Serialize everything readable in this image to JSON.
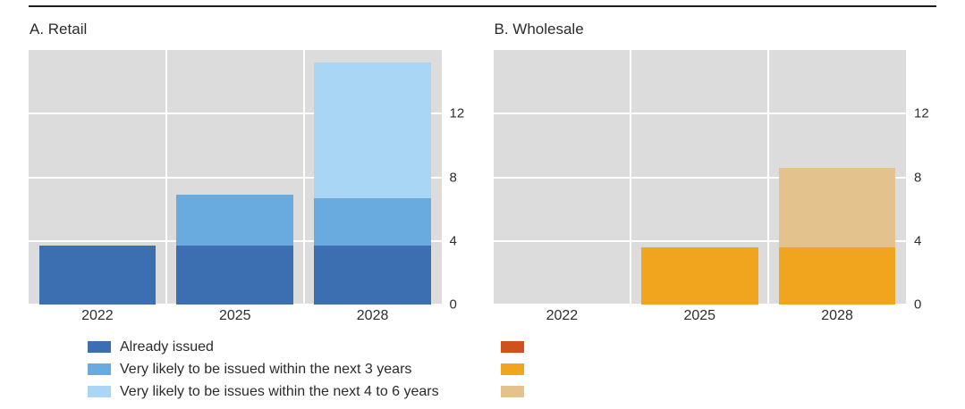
{
  "chart_data": [
    {
      "type": "bar",
      "stacked": true,
      "title": "A. Retail",
      "categories": [
        "2022",
        "2025",
        "2028"
      ],
      "yticks": [
        0,
        4,
        8,
        12
      ],
      "ylim": [
        0,
        16
      ],
      "grid": true,
      "legend_position": "below-left",
      "series": [
        {
          "name": "Already issued",
          "color": "#3c6fb2",
          "values": [
            3.7,
            3.7,
            3.7
          ]
        },
        {
          "name": "Very likely to be issued within the next 3 years",
          "color": "#69abdf",
          "values": [
            0,
            3.2,
            3.0
          ]
        },
        {
          "name": "Very likely to be issues within the next 4 to 6 years",
          "color": "#a9d6f5",
          "values": [
            0,
            0,
            8.5
          ]
        }
      ]
    },
    {
      "type": "bar",
      "stacked": true,
      "title": "B. Wholesale",
      "categories": [
        "2022",
        "2025",
        "2028"
      ],
      "yticks": [
        0,
        4,
        8,
        12
      ],
      "ylim": [
        0,
        16
      ],
      "grid": true,
      "legend_position": "below-left",
      "series": [
        {
          "name": "",
          "color": "#d1511d",
          "values": [
            0,
            0,
            0
          ]
        },
        {
          "name": "",
          "color": "#f1a51f",
          "values": [
            0,
            3.6,
            3.6
          ]
        },
        {
          "name": "",
          "color": "#e4c28e",
          "values": [
            0,
            0,
            5.0
          ]
        }
      ]
    }
  ],
  "colors": {
    "plot_background": "#dcdcdc",
    "gridline": "#ffffff",
    "top_rule": "#1c1c1c",
    "text": "#2e2e2e"
  }
}
